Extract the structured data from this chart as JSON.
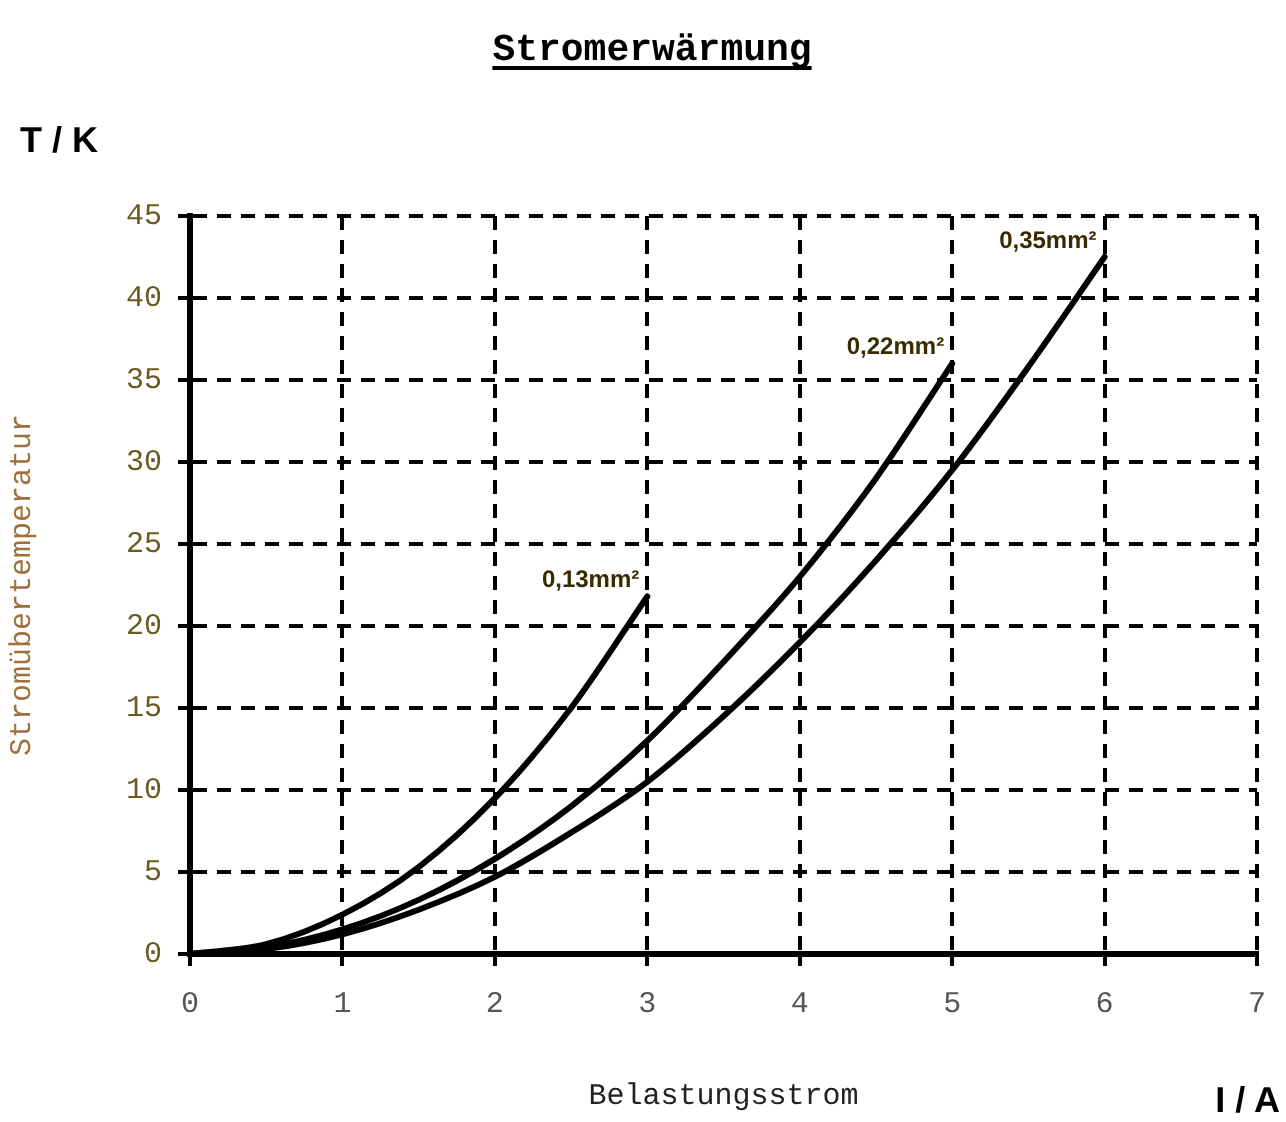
{
  "chart_data": {
    "type": "line",
    "title": "Stromerwärmung",
    "xlabel": "Belastungsstrom",
    "ylabel": "Stromübertemperatur",
    "annotations": [
      "T / K",
      "I / A"
    ],
    "xlim": [
      0,
      7
    ],
    "xticks": [
      0,
      1,
      2,
      3,
      4,
      5,
      6,
      7
    ],
    "ylim": [
      0,
      45
    ],
    "yticks": [
      0,
      5,
      10,
      15,
      20,
      25,
      30,
      35,
      40,
      45
    ],
    "grid": true,
    "marker": "none",
    "line_style": "solid",
    "series": [
      {
        "name": "0,13mm²",
        "color": "#000000",
        "x": [
          0,
          0.5,
          1,
          1.5,
          2,
          2.5,
          3
        ],
        "values": [
          0,
          0.6,
          2.4,
          5.3,
          9.5,
          15,
          21.8
        ]
      },
      {
        "name": "0,22mm²",
        "color": "#000000",
        "x": [
          0,
          0.5,
          1,
          1.5,
          2,
          2.5,
          3,
          3.5,
          4,
          4.5,
          5
        ],
        "values": [
          0,
          0.4,
          1.5,
          3.3,
          5.8,
          9,
          13,
          17.8,
          23,
          29,
          36
        ]
      },
      {
        "name": "0,35mm²",
        "color": "#000000",
        "x": [
          0,
          0.5,
          1,
          1.5,
          2,
          2.5,
          3,
          3.5,
          4,
          4.5,
          5,
          5.5,
          6
        ],
        "values": [
          0,
          0.3,
          1.2,
          2.7,
          4.7,
          7.4,
          10.5,
          14.5,
          19,
          24,
          29.5,
          35.8,
          42.5
        ]
      }
    ]
  }
}
